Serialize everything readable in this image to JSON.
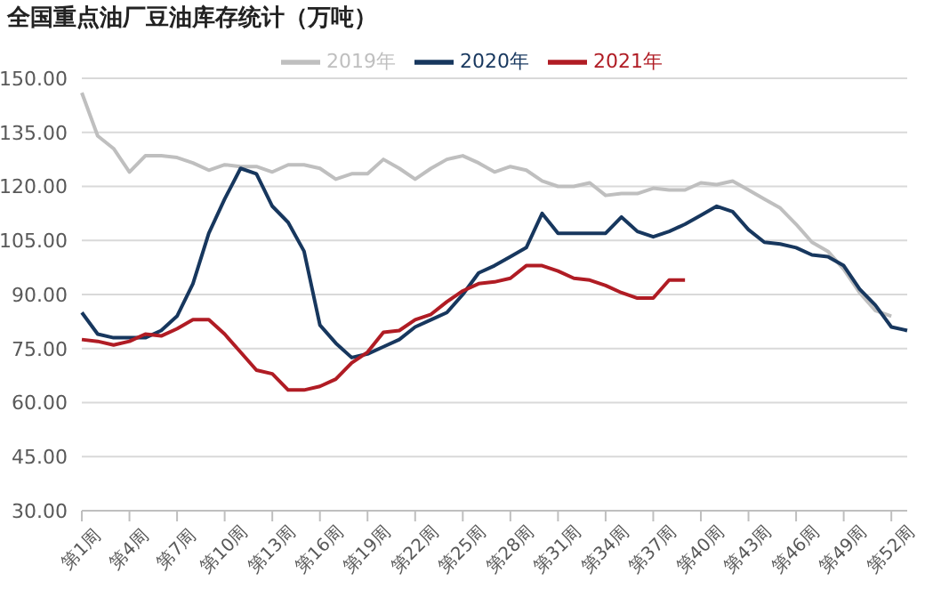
{
  "chart_data": {
    "type": "line",
    "title": "全国重点油厂豆油库存统计（万吨）",
    "categories": [
      "第1周",
      null,
      null,
      "第4周",
      null,
      null,
      "第7周",
      null,
      null,
      "第10周",
      null,
      null,
      "第13周",
      null,
      null,
      "第16周",
      null,
      null,
      "第19周",
      null,
      null,
      "第22周",
      null,
      null,
      "第25周",
      null,
      null,
      "第28周",
      null,
      null,
      "第31周",
      null,
      null,
      "第34周",
      null,
      null,
      "第37周",
      null,
      null,
      "第40周",
      null,
      null,
      "第43周",
      null,
      null,
      "第46周",
      null,
      null,
      "第49周",
      null,
      null,
      "第52周",
      null
    ],
    "series": [
      {
        "name": "2019年",
        "color": "#bfbfbf",
        "values": [
          146,
          134,
          130.5,
          124,
          128.5,
          128.5,
          128,
          126.5,
          124.5,
          126,
          125.5,
          125.5,
          124,
          126,
          126,
          125,
          122,
          123.5,
          123.5,
          127.5,
          125,
          122,
          125,
          127.5,
          128.5,
          126.5,
          124,
          125.5,
          124.5,
          121.5,
          120,
          120,
          121,
          117.5,
          118,
          118,
          119.5,
          119,
          119,
          121,
          120.5,
          121.5,
          119,
          116.5,
          114,
          109.5,
          104.5,
          102,
          97,
          90.5,
          85.5,
          84,
          null
        ]
      },
      {
        "name": "2020年",
        "color": "#17375e",
        "values": [
          85,
          79,
          78,
          78,
          78,
          80,
          84,
          93,
          107,
          116.5,
          125,
          123.5,
          114.5,
          110,
          102,
          81.5,
          76.5,
          72.5,
          73.5,
          75.5,
          77.5,
          81,
          83,
          85,
          90,
          96,
          98,
          100.5,
          103,
          112.5,
          107,
          107,
          107,
          107,
          111.5,
          107.5,
          106,
          107.5,
          109.5,
          112,
          114.5,
          113,
          108,
          104.5,
          104,
          103,
          101,
          100.5,
          98,
          91.5,
          87,
          81,
          80
        ]
      },
      {
        "name": "2021年",
        "color": "#b01c24",
        "values": [
          77.5,
          77,
          76,
          77,
          79,
          78.5,
          80.5,
          83,
          83,
          79,
          74,
          69,
          68,
          63.5,
          63.5,
          64.5,
          66.5,
          71,
          74,
          79.5,
          80,
          83,
          84.5,
          88,
          91,
          93,
          93.5,
          94.5,
          98,
          98,
          96.5,
          94.5,
          94,
          92.5,
          90.5,
          89,
          89,
          94,
          94,
          null,
          null,
          null,
          null,
          null,
          null,
          null,
          null,
          null,
          null,
          null,
          null,
          null,
          null
        ]
      }
    ],
    "ylim": [
      30,
      150
    ],
    "yticks": [
      {
        "value": 30,
        "label": "30.00"
      },
      {
        "value": 45,
        "label": "45.00"
      },
      {
        "value": 60,
        "label": "60.00"
      },
      {
        "value": 75,
        "label": "75.00"
      },
      {
        "value": 90,
        "label": "90.00"
      },
      {
        "value": 105,
        "label": "105.00"
      },
      {
        "value": 120,
        "label": "120.00"
      },
      {
        "value": 135,
        "label": "135.00"
      },
      {
        "value": 150,
        "label": "150.00"
      }
    ],
    "grid": "y",
    "legend": "top",
    "marker": "none",
    "line_style": "solid"
  }
}
